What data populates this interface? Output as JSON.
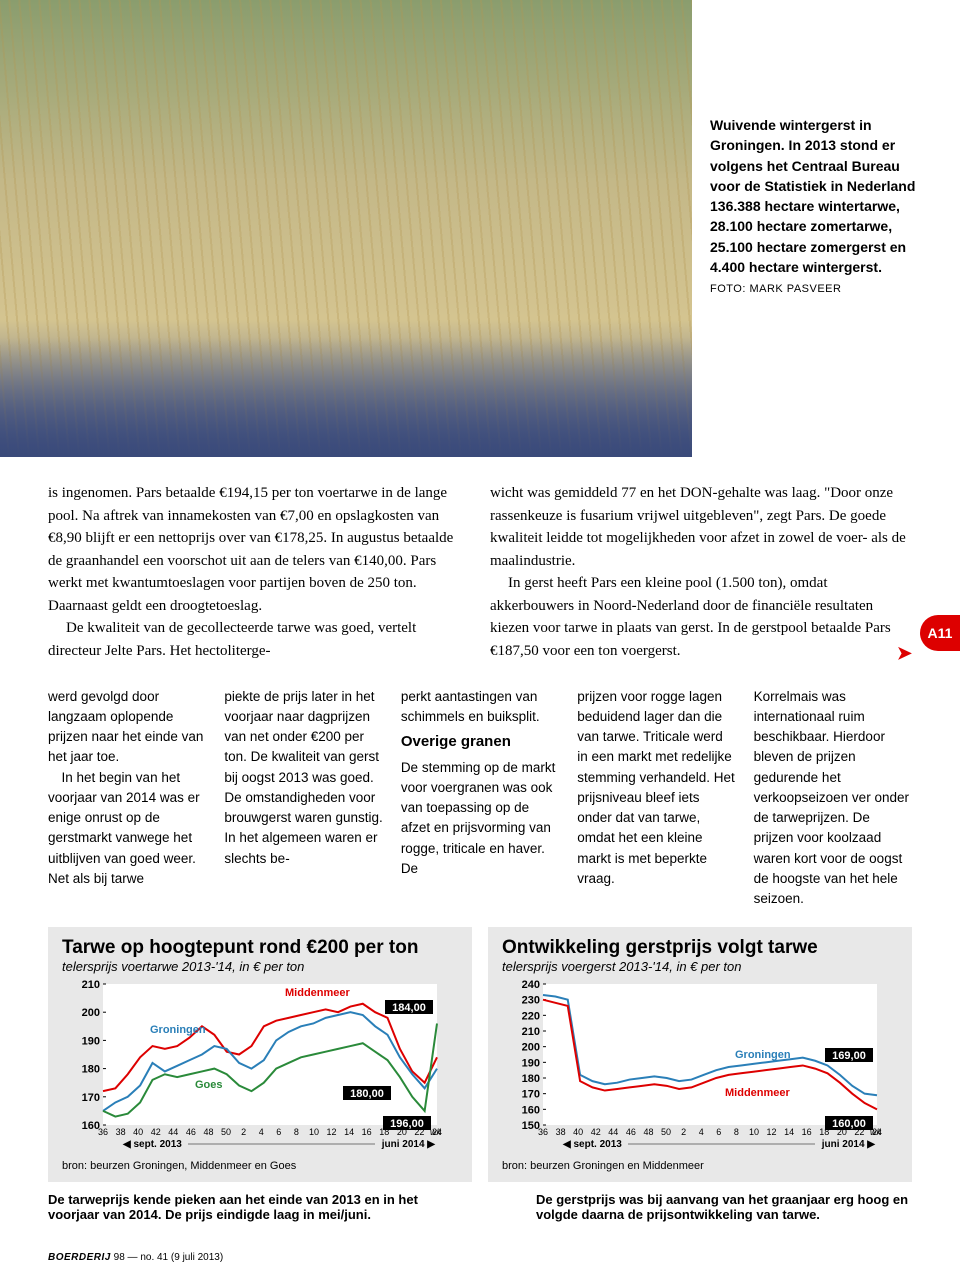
{
  "caption": {
    "text": "Wuivende wintergerst in Groningen. In 2013 stond er volgens het Centraal Bureau voor de Statistiek in Nederland 136.388 hectare wintertarwe, 28.100 hectare zomertarwe, 25.100 hectare zomergerst en 4.400 hectare wintergerst.",
    "credit": "FOTO: MARK PASVEER"
  },
  "body": {
    "col1_p1": "is ingenomen. Pars betaalde €194,15 per ton voertarwe in de lange pool. Na aftrek van innamekosten van €7,00 en opslagkosten van €8,90 blijft er een nettoprijs over van €178,25. In augustus betaalde de graanhandel een voorschot uit aan de telers van €140,00. Pars werkt met kwantumtoeslagen voor partijen boven de 250 ton. Daarnaast geldt een droogtetoeslag.",
    "col1_p2": "De kwaliteit van de gecollecteerde tarwe was goed, vertelt directeur Jelte Pars. Het hectoliterge-",
    "col2_p1": "wicht was gemiddeld 77 en het DON-gehalte was laag. \"Door onze rassenkeuze is fusarium vrijwel uitgebleven\", zegt Pars. De goede kwaliteit leidde tot mogelijkheden voor afzet in zowel de voer- als de maalindustrie.",
    "col2_p2": "In gerst heeft Pars een kleine pool (1.500 ton), omdat akkerbouwers in Noord-Nederland door de financiële resultaten kiezen voor tarwe in plaats van gerst. In de gerstpool betaalde Pars €187,50 voor een ton voergerst."
  },
  "subcols": {
    "c1": "werd gevolgd door langzaam oplopende prijzen naar het einde van het jaar toe.",
    "c1b": "In het begin van het voorjaar van 2014 was er enige onrust op de gerstmarkt vanwege het uitblijven van goed weer. Net als bij tarwe",
    "c2": "piekte de prijs later in het voorjaar naar dagprijzen van net onder €200 per ton. De kwaliteit van gerst bij oogst 2013 was goed. De omstandigheden voor brouwgerst waren gunstig. In het algemeen waren er slechts be-",
    "c3a": "perkt aantastingen van schimmels en buiksplit.",
    "c3_heading": "Overige granen",
    "c3b": "De stemming op de markt voor voergranen was ook van toepassing op de afzet en prijsvorming van rogge, triticale en haver. De",
    "c4": "prijzen voor rogge lagen beduidend lager dan die van tarwe. Triticale werd in een markt met redelijke stemming verhandeld. Het prijsniveau bleef iets onder dat van tarwe, omdat het een kleine markt is met beperkte vraag.",
    "c5": "Korrelmais was internationaal ruim beschikbaar. Hierdoor bleven de prijzen gedurende het verkoopseizoen ver onder de tarweprijzen. De prijzen voor koolzaad waren kort voor de oogst de hoogste van het hele seizoen."
  },
  "chart1": {
    "type": "line",
    "title": "Tarwe op hoogtepunt rond €200 per ton",
    "subtitle": "telersprijs voertarwe 2013-'14, in € per ton",
    "ylim": [
      160,
      210
    ],
    "ytick_step": 10,
    "yticks": [
      "160",
      "170",
      "180",
      "190",
      "200",
      "210"
    ],
    "xticks": [
      "36",
      "38",
      "40",
      "42",
      "44",
      "46",
      "48",
      "50",
      "2",
      "4",
      "6",
      "8",
      "10",
      "12",
      "14",
      "16",
      "18",
      "20",
      "22",
      "24"
    ],
    "xlabel_wk": "wk",
    "x_period_left": "sept. 2013",
    "x_period_right": "juni 2014",
    "series": [
      {
        "name": "Middenmeer",
        "color": "#d00",
        "values": [
          172,
          173,
          178,
          184,
          188,
          187,
          188,
          191,
          195,
          192,
          186,
          185,
          188,
          195,
          197,
          198,
          199,
          200,
          201,
          200,
          202,
          203,
          200,
          198,
          187,
          179,
          175,
          184
        ]
      },
      {
        "name": "Groningen",
        "color": "#2a7fb8",
        "values": [
          165,
          168,
          170,
          174,
          182,
          179,
          181,
          183,
          185,
          188,
          187,
          182,
          180,
          183,
          190,
          193,
          195,
          196,
          198,
          199,
          200,
          199,
          195,
          192,
          184,
          178,
          173,
          180
        ]
      },
      {
        "name": "Goes",
        "color": "#2a8a3a",
        "values": [
          165,
          163,
          164,
          168,
          176,
          178,
          177,
          178,
          179,
          180,
          178,
          174,
          172,
          175,
          180,
          182,
          184,
          185,
          186,
          187,
          188,
          189,
          186,
          183,
          177,
          170,
          165,
          196
        ]
      }
    ],
    "callouts": [
      {
        "label": "184,00",
        "color": "#000"
      },
      {
        "label": "180,00",
        "color": "#000"
      },
      {
        "label": "196,00",
        "color": "#000"
      }
    ],
    "source": "bron: beurzen Groningen, Middenmeer en Goes",
    "footnote": "De tarweprijs kende pieken aan het einde van 2013 en in het voorjaar van 2014. De prijs eindigde laag in mei/juni."
  },
  "chart2": {
    "type": "line",
    "title": "Ontwikkeling gerstprijs volgt tarwe",
    "subtitle": "telersprijs voergerst 2013-'14, in € per ton",
    "ylim": [
      150,
      240
    ],
    "ytick_step": 10,
    "yticks": [
      "150",
      "160",
      "170",
      "180",
      "190",
      "200",
      "210",
      "220",
      "230",
      "240"
    ],
    "xticks": [
      "36",
      "38",
      "40",
      "42",
      "44",
      "46",
      "48",
      "50",
      "2",
      "4",
      "6",
      "8",
      "10",
      "12",
      "14",
      "16",
      "18",
      "20",
      "22",
      "24"
    ],
    "xlabel_wk": "wk",
    "x_period_left": "sept. 2013",
    "x_period_right": "juni 2014",
    "series": [
      {
        "name": "Groningen",
        "color": "#2a7fb8",
        "values": [
          233,
          232,
          230,
          182,
          178,
          176,
          177,
          179,
          180,
          181,
          180,
          178,
          179,
          182,
          185,
          187,
          188,
          189,
          190,
          191,
          192,
          193,
          191,
          188,
          182,
          175,
          170,
          169
        ]
      },
      {
        "name": "Middenmeer",
        "color": "#d00",
        "values": [
          230,
          228,
          226,
          178,
          174,
          172,
          173,
          174,
          175,
          176,
          175,
          173,
          174,
          177,
          180,
          182,
          183,
          184,
          185,
          186,
          187,
          188,
          186,
          183,
          177,
          170,
          164,
          160
        ]
      }
    ],
    "callouts": [
      {
        "label": "169,00",
        "color": "#000"
      },
      {
        "label": "160,00",
        "color": "#000"
      }
    ],
    "source": "bron: beurzen Groningen en Middenmeer",
    "footnote": "De gerstprijs was bij aanvang van het graanjaar erg hoog en volgde daarna de prijsontwikkeling van tarwe."
  },
  "tab": "A11",
  "footer": {
    "brand": "BOERDERIJ",
    "issue": "98 — no. 41 (9 juli 2013)"
  }
}
